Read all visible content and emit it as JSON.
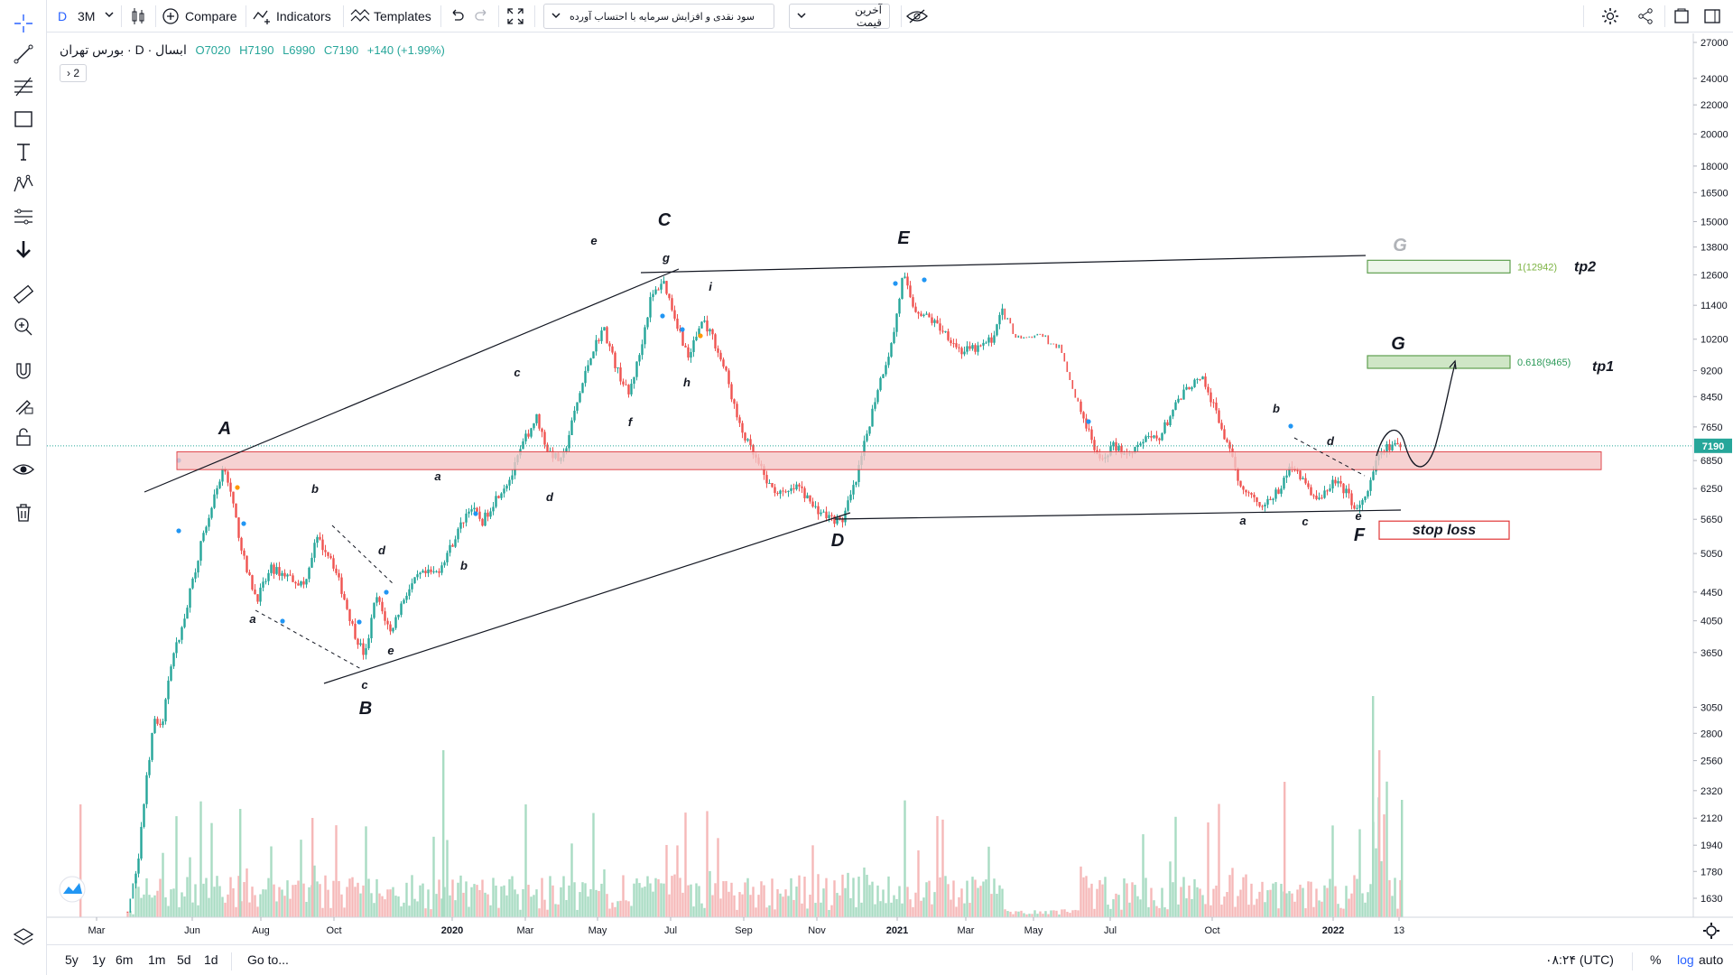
{
  "toolbar": {
    "interval_prefix": "D",
    "interval": "3M",
    "compare_label": "Compare",
    "indicators_label": "Indicators",
    "templates_label": "Templates",
    "indicator_select": "سود نقدی و افزایش سرمایه با احتساب آورده",
    "price_select": "آخرین قیمت"
  },
  "legend": {
    "symbol": "ابسال · D · بورس تهران",
    "open": "O7020",
    "high": "H7190",
    "low": "L6990",
    "close": "C7190",
    "change": "+140 (+1.99%)",
    "collapse_count": "2"
  },
  "bottombar": {
    "ranges": [
      "5y",
      "1y",
      "6m",
      "1m",
      "5d",
      "1d"
    ],
    "goto": "Go to...",
    "time": "۰۸:۲۴ (UTC)",
    "percent": "%",
    "log": "log",
    "auto": "auto"
  },
  "colors": {
    "up": "#26a69a",
    "down": "#ef5350",
    "zone_fill": "#f4c7c7",
    "zone_border": "#e0484d",
    "tp_border": "#5f9f4f",
    "tp1_fill": "#cfe6c6",
    "stop_border": "#e03636",
    "price_tag": "#26a69a",
    "accent": "#2962ff"
  },
  "chart_data": {
    "type": "candlestick",
    "symbol": "ابسال",
    "y_scale": "log",
    "y_ticks": [
      1630,
      1780,
      1940,
      2120,
      2320,
      2560,
      2800,
      3050,
      3650,
      4050,
      4450,
      5050,
      5650,
      6250,
      6850,
      7650,
      8450,
      9200,
      10200,
      11400,
      12600,
      13800,
      15000,
      16500,
      18000,
      20000,
      22000,
      24000,
      27000
    ],
    "x_ticks": [
      "Mar",
      "Jun",
      "Aug",
      "Oct",
      "2020",
      "Mar",
      "May",
      "Jul",
      "Sep",
      "Nov",
      "2021",
      "Mar",
      "May",
      "Jul",
      "Oct",
      "2022",
      "13"
    ],
    "last_price": "7190",
    "key_prices": {
      "A": 6700,
      "B": 3500,
      "C": 12500,
      "D": 5600,
      "E": 12700,
      "F": 5700
    },
    "wave_labels": [
      "A",
      "B",
      "C",
      "D",
      "E",
      "F",
      "G",
      "G"
    ],
    "sub_wave_labels": [
      "a",
      "b",
      "c",
      "d",
      "e",
      "a",
      "b",
      "c",
      "d",
      "e",
      "f",
      "g",
      "h",
      "i",
      "a",
      "b",
      "c",
      "d",
      "e"
    ],
    "support_zone": {
      "low": 6650,
      "high": 7050
    },
    "targets": [
      {
        "name": "tp1",
        "label": "0.618(9465)",
        "price": 9465
      },
      {
        "name": "tp2",
        "label": "1(12942)",
        "price": 12942
      }
    ],
    "stop_loss": {
      "label": "stop loss",
      "price": 5600
    }
  }
}
